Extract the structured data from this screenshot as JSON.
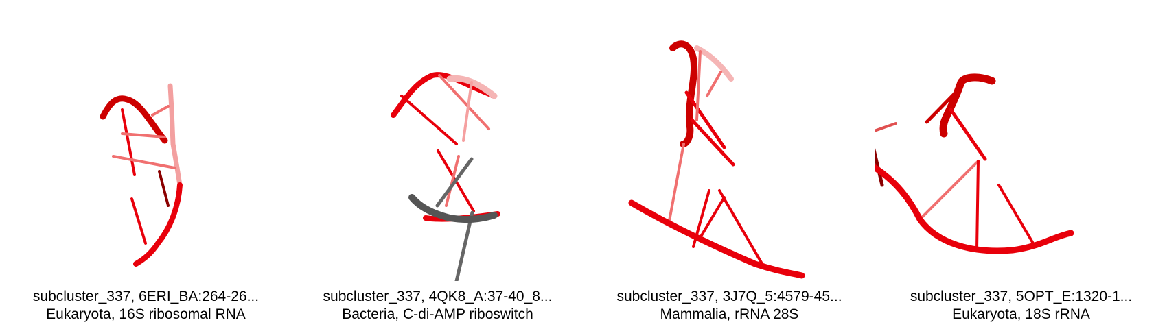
{
  "panels": [
    {
      "title": "subcluster_337, 6ERI_BA:264-26...",
      "subtitle": "Eukaryota, 16S ribosomal RNA"
    },
    {
      "title": "subcluster_337, 4QK8_A:37-40_8...",
      "subtitle": "Bacteria, C-di-AMP riboswitch"
    },
    {
      "title": "subcluster_337, 3J7Q_5:4579-45...",
      "subtitle": "Mammalia, rRNA 28S"
    },
    {
      "title": "subcluster_337, 5OPT_E:1320-1...",
      "subtitle": "Eukaryota, 18S rRNA"
    }
  ],
  "colors": {
    "rna_red": "#e8000b",
    "rna_dark": "#8b0000",
    "ligand_gray": "#555555"
  }
}
